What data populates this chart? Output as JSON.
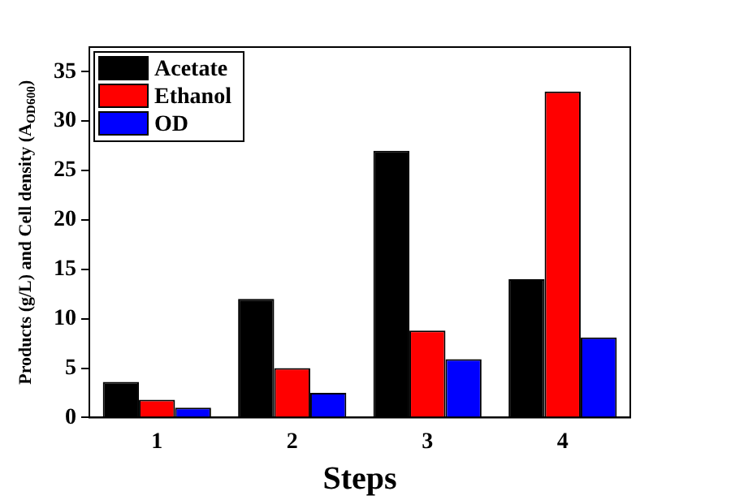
{
  "chart_data": {
    "type": "bar",
    "xlabel": "Steps",
    "ylabel": "Products (g/L) and Cell density (A$_{OD600}$)",
    "categories": [
      "1",
      "2",
      "3",
      "4"
    ],
    "series": [
      {
        "name": "Acetate",
        "color": "#000000",
        "values": [
          3.6,
          12,
          27,
          14
        ]
      },
      {
        "name": "Ethanol",
        "color": "#ff0000",
        "values": [
          1.8,
          5.0,
          8.8,
          33
        ]
      },
      {
        "name": "OD",
        "color": "#0000ff",
        "values": [
          1.0,
          2.5,
          5.9,
          8.1
        ]
      }
    ],
    "ylim": [
      0,
      37.5
    ],
    "yticks": [
      0,
      5,
      10,
      15,
      20,
      25,
      30,
      35
    ],
    "grid": false,
    "legend": "top left"
  }
}
